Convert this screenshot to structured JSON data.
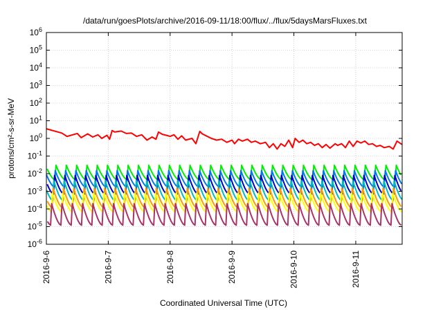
{
  "chart_data": {
    "type": "line",
    "title": "/data/run/goesPlots/archive/2016-09-11/18:00/flux/../flux/5daysMarsFluxes.txt",
    "xlabel": "Coordinated Universal Time (UTC)",
    "ylabel": "protons/cm²-s-sr-MeV",
    "x_scale": "time",
    "xlim": [
      "2016-09-06T00:00",
      "2016-09-11T18:00"
    ],
    "x_ticks": [
      "2016-9-6",
      "2016-9-7",
      "2016-9-8",
      "2016-9-9",
      "2016-9-10",
      "2016-9-11"
    ],
    "y_scale": "log",
    "ylim": [
      1e-06,
      1000000.0
    ],
    "y_ticks": [
      {
        "base": "10",
        "exp": "-6"
      },
      {
        "base": "10",
        "exp": "-5"
      },
      {
        "base": "10",
        "exp": "-4"
      },
      {
        "base": "10",
        "exp": "-3"
      },
      {
        "base": "10",
        "exp": "-2"
      },
      {
        "base": "10",
        "exp": "-1"
      },
      {
        "base": "10",
        "exp": "0"
      },
      {
        "base": "10",
        "exp": "1"
      },
      {
        "base": "10",
        "exp": "2"
      },
      {
        "base": "10",
        "exp": "3"
      },
      {
        "base": "10",
        "exp": "4"
      },
      {
        "base": "10",
        "exp": "5"
      },
      {
        "base": "10",
        "exp": "6"
      }
    ],
    "grid": true,
    "legend": "none",
    "series": [
      {
        "color": "#ff0000",
        "x": [
          "2016-09-06T00:00",
          "2016-09-06T06:00",
          "2016-09-06T08:00",
          "2016-09-06T12:00",
          "2016-09-06T13:30",
          "2016-09-06T16:00",
          "2016-09-06T18:00",
          "2016-09-06T20:00",
          "2016-09-06T21:30",
          "2016-09-06T23:30",
          "2016-09-07T00:30",
          "2016-09-07T01:30",
          "2016-09-07T02:30",
          "2016-09-07T05:00",
          "2016-09-07T07:00",
          "2016-09-07T09:00",
          "2016-09-07T11:00",
          "2016-09-07T13:00",
          "2016-09-07T15:00",
          "2016-09-07T17:00",
          "2016-09-07T18:30",
          "2016-09-07T19:30",
          "2016-09-07T21:00",
          "2016-09-07T22:30",
          "2016-09-08T00:00",
          "2016-09-08T01:30",
          "2016-09-08T03:00",
          "2016-09-08T04:30",
          "2016-09-08T06:00",
          "2016-09-08T08:30",
          "2016-09-08T10:00",
          "2016-09-08T11:30",
          "2016-09-08T12:30",
          "2016-09-08T14:00",
          "2016-09-08T16:00",
          "2016-09-08T18:00",
          "2016-09-08T20:00",
          "2016-09-08T22:00",
          "2016-09-09T00:00",
          "2016-09-09T01:00",
          "2016-09-09T02:30",
          "2016-09-09T04:00",
          "2016-09-09T06:00",
          "2016-09-09T07:30",
          "2016-09-09T09:00",
          "2016-09-09T11:00",
          "2016-09-09T13:00",
          "2016-09-09T14:30",
          "2016-09-09T16:00",
          "2016-09-09T17:30",
          "2016-09-09T19:00",
          "2016-09-09T20:30",
          "2016-09-09T22:00",
          "2016-09-09T23:30",
          "2016-09-10T00:30",
          "2016-09-10T02:00",
          "2016-09-10T03:30",
          "2016-09-10T05:00",
          "2016-09-10T06:30",
          "2016-09-10T08:00",
          "2016-09-10T09:30",
          "2016-09-10T11:00",
          "2016-09-10T12:30",
          "2016-09-10T14:00",
          "2016-09-10T16:00",
          "2016-09-10T17:00",
          "2016-09-10T18:30",
          "2016-09-10T20:00",
          "2016-09-10T21:30",
          "2016-09-10T23:00",
          "2016-09-11T00:30",
          "2016-09-11T02:00",
          "2016-09-11T03:30",
          "2016-09-11T05:00",
          "2016-09-11T06:30",
          "2016-09-11T08:00",
          "2016-09-11T09:30",
          "2016-09-11T11:00",
          "2016-09-11T13:00",
          "2016-09-11T14:30",
          "2016-09-11T16:00",
          "2016-09-11T17:30",
          "2016-09-11T18:00"
        ],
        "y": [
          3.5,
          2.0,
          1.3,
          1.9,
          1.1,
          1.8,
          1.2,
          1.6,
          1.0,
          1.5,
          0.9,
          2.8,
          2.3,
          2.6,
          1.9,
          2.0,
          1.3,
          1.6,
          0.8,
          1.2,
          0.9,
          2.3,
          1.7,
          1.5,
          1.3,
          1.6,
          0.9,
          1.4,
          0.8,
          1.0,
          0.5,
          2.5,
          1.8,
          1.4,
          1.0,
          0.8,
          0.9,
          0.6,
          0.8,
          0.5,
          0.9,
          0.7,
          0.9,
          0.6,
          0.7,
          0.5,
          0.6,
          0.3,
          0.5,
          0.25,
          0.5,
          0.35,
          0.8,
          0.3,
          1.0,
          0.6,
          0.8,
          0.5,
          0.6,
          0.4,
          0.5,
          0.3,
          0.45,
          0.28,
          0.5,
          0.4,
          0.5,
          0.3,
          0.7,
          0.35,
          0.7,
          0.55,
          0.7,
          0.45,
          0.5,
          0.35,
          0.4,
          0.3,
          0.35,
          0.25,
          0.7,
          0.5,
          0.45
        ]
      },
      {
        "color": "#00ee00",
        "baseline": 0.0045,
        "peak": 0.03
      },
      {
        "color": "#0077ee",
        "baseline": 0.0018,
        "peak": 0.015
      },
      {
        "color": "#0000cc",
        "baseline": 0.0007,
        "peak": 0.008
      },
      {
        "color": "#00bbbb",
        "baseline": 0.0003,
        "peak": 0.004
      },
      {
        "color": "#ff9900",
        "baseline": 0.00012,
        "peak": 0.0015
      },
      {
        "color": "#ffff00",
        "baseline": 7e-05,
        "peak": 0.0008
      },
      {
        "color": "#aa3366",
        "baseline": 1.2e-05,
        "peak": 0.0002
      }
    ]
  }
}
